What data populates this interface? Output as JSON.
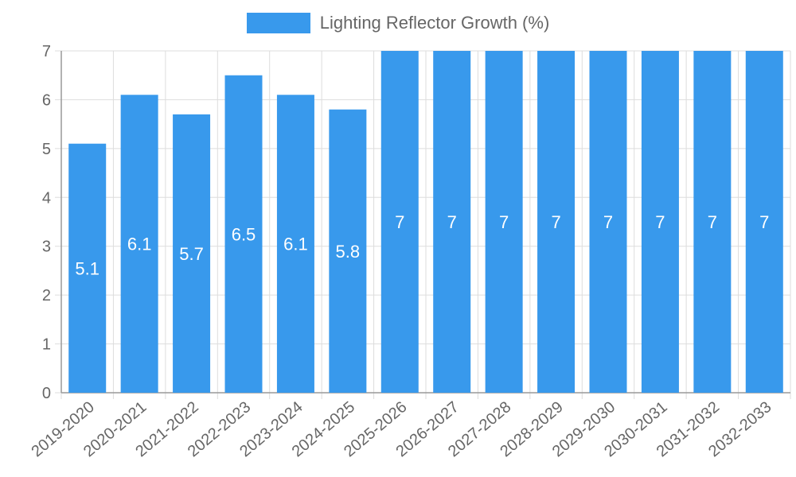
{
  "chart_data": {
    "type": "bar",
    "categories": [
      "2019-2020",
      "2020-2021",
      "2021-2022",
      "2022-2023",
      "2023-2024",
      "2024-2025",
      "2025-2026",
      "2026-2027",
      "2027-2028",
      "2028-2029",
      "2029-2030",
      "2030-2031",
      "2031-2032",
      "2032-2033"
    ],
    "series": [
      {
        "name": "Lighting Reflector Growth (%)",
        "values": [
          5.1,
          6.1,
          5.7,
          6.5,
          6.1,
          5.8,
          7,
          7,
          7,
          7,
          7,
          7,
          7,
          7
        ],
        "color": "#3899ec"
      }
    ],
    "data_labels": [
      "5.1",
      "6.1",
      "5.7",
      "6.5",
      "6.1",
      "5.8",
      "7",
      "7",
      "7",
      "7",
      "7",
      "7",
      "7",
      "7"
    ],
    "y_ticks": [
      "0",
      "1",
      "2",
      "3",
      "4",
      "5",
      "6",
      "7"
    ],
    "ylim": [
      0,
      7
    ],
    "grid": true,
    "legend_position": "top-center",
    "title": "",
    "xlabel": "",
    "ylabel": ""
  }
}
